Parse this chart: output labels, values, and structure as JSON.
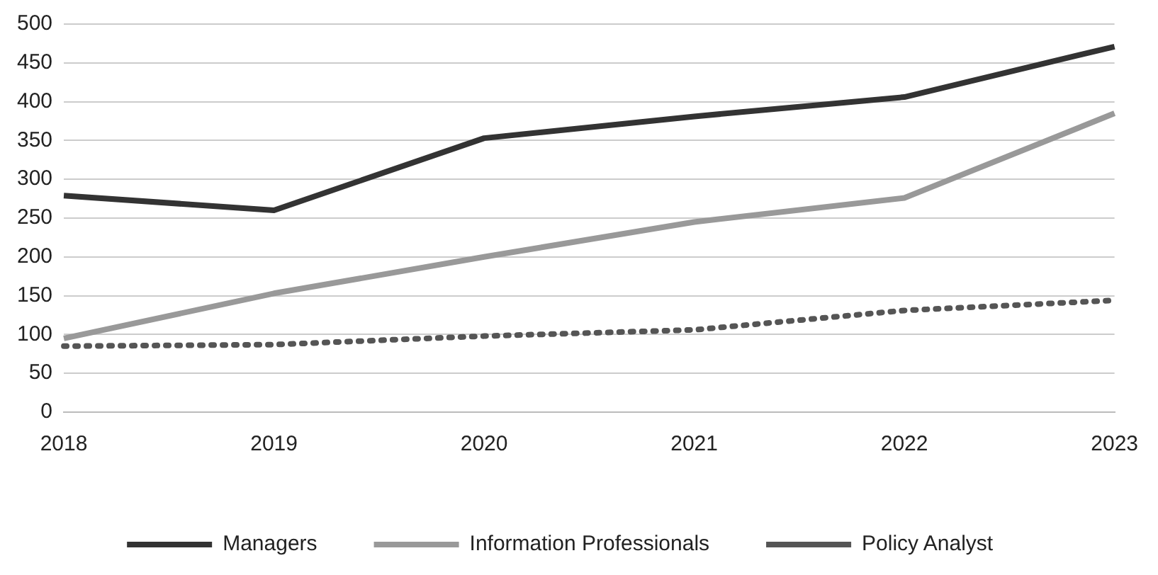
{
  "chart_data": {
    "type": "line",
    "categories": [
      "2018",
      "2019",
      "2020",
      "2021",
      "2022",
      "2023"
    ],
    "series": [
      {
        "name": "Managers",
        "color": "#333333",
        "values": [
          279,
          260,
          353,
          381,
          406,
          471
        ],
        "line_style": "solid"
      },
      {
        "name": "Information Professionals",
        "color": "#999999",
        "values": [
          95,
          153,
          200,
          245,
          276,
          385
        ],
        "line_style": "solid"
      },
      {
        "name": "Policy Analyst",
        "color": "#555555",
        "values": [
          85,
          87,
          98,
          106,
          131,
          144
        ],
        "line_style": "dotted"
      }
    ],
    "ylim": [
      0,
      500
    ],
    "yticks": [
      0,
      50,
      100,
      150,
      200,
      250,
      300,
      350,
      400,
      450,
      500
    ],
    "grid": "y",
    "legend": "bottom",
    "marker": "none"
  }
}
